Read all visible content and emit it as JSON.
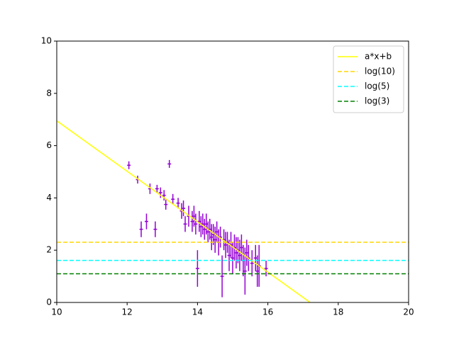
{
  "chart_data": {
    "type": "scatter",
    "xlim": [
      10,
      20
    ],
    "ylim": [
      0,
      10
    ],
    "xticks": [
      10,
      12,
      14,
      16,
      18,
      20
    ],
    "yticks": [
      0,
      2,
      4,
      6,
      8,
      10
    ],
    "legend": "upper right",
    "series": [
      {
        "color": "#9400d3",
        "xerr": 0.05,
        "x": [
          12.05,
          12.3,
          12.4,
          12.55,
          12.65,
          12.8,
          12.85,
          12.95,
          13.05,
          13.1,
          13.2,
          13.3,
          13.45,
          13.55,
          13.6,
          13.65,
          13.75,
          13.85,
          13.9,
          13.95,
          14.0,
          14.05,
          14.1,
          14.15,
          14.2,
          14.25,
          14.3,
          14.35,
          14.4,
          14.45,
          14.5,
          14.55,
          14.6,
          14.65,
          14.7,
          14.75,
          14.8,
          14.85,
          14.9,
          14.95,
          15.0,
          15.05,
          15.1,
          15.15,
          15.2,
          15.25,
          15.3,
          15.35,
          15.4,
          15.45,
          15.55,
          15.65,
          15.7,
          15.75,
          15.95
        ],
        "values": [
          5.25,
          4.7,
          2.8,
          3.1,
          4.35,
          2.8,
          4.35,
          4.2,
          4.1,
          3.75,
          5.3,
          3.95,
          3.8,
          3.5,
          3.6,
          3.0,
          3.3,
          3.1,
          3.3,
          3.0,
          1.3,
          3.1,
          2.9,
          3.0,
          2.8,
          3.0,
          2.7,
          2.8,
          2.5,
          2.6,
          2.4,
          2.7,
          2.3,
          2.5,
          1.0,
          2.4,
          2.2,
          2.3,
          1.8,
          2.2,
          1.7,
          2.1,
          1.9,
          2.0,
          1.8,
          2.1,
          1.6,
          1.2,
          1.9,
          1.7,
          1.5,
          1.7,
          1.2,
          1.4,
          1.3
        ],
        "yerr": [
          0.15,
          0.15,
          0.3,
          0.3,
          0.2,
          0.3,
          0.15,
          0.2,
          0.2,
          0.2,
          0.15,
          0.2,
          0.2,
          0.3,
          0.3,
          0.3,
          0.4,
          0.4,
          0.4,
          0.4,
          0.7,
          0.4,
          0.4,
          0.4,
          0.4,
          0.4,
          0.4,
          0.4,
          0.5,
          0.4,
          0.5,
          0.4,
          0.5,
          0.4,
          0.8,
          0.4,
          0.5,
          0.4,
          0.6,
          0.5,
          0.6,
          0.5,
          0.6,
          0.5,
          0.6,
          0.5,
          0.6,
          0.9,
          0.5,
          0.5,
          0.5,
          0.5,
          0.6,
          0.8,
          0.3
        ]
      },
      {
        "name": "a*x+b",
        "color": "#ffff00",
        "linestyle": "solid",
        "x": [
          10,
          17.2
        ],
        "values": [
          6.95,
          0
        ]
      },
      {
        "name": "log(10)",
        "color": "#ffd700",
        "linestyle": "dashed",
        "value": 2.303
      },
      {
        "name": "log(5)",
        "color": "#00ffff",
        "linestyle": "dashed",
        "value": 1.609
      },
      {
        "name": "log(3)",
        "color": "#008000",
        "linestyle": "dashed",
        "value": 1.099
      }
    ]
  }
}
